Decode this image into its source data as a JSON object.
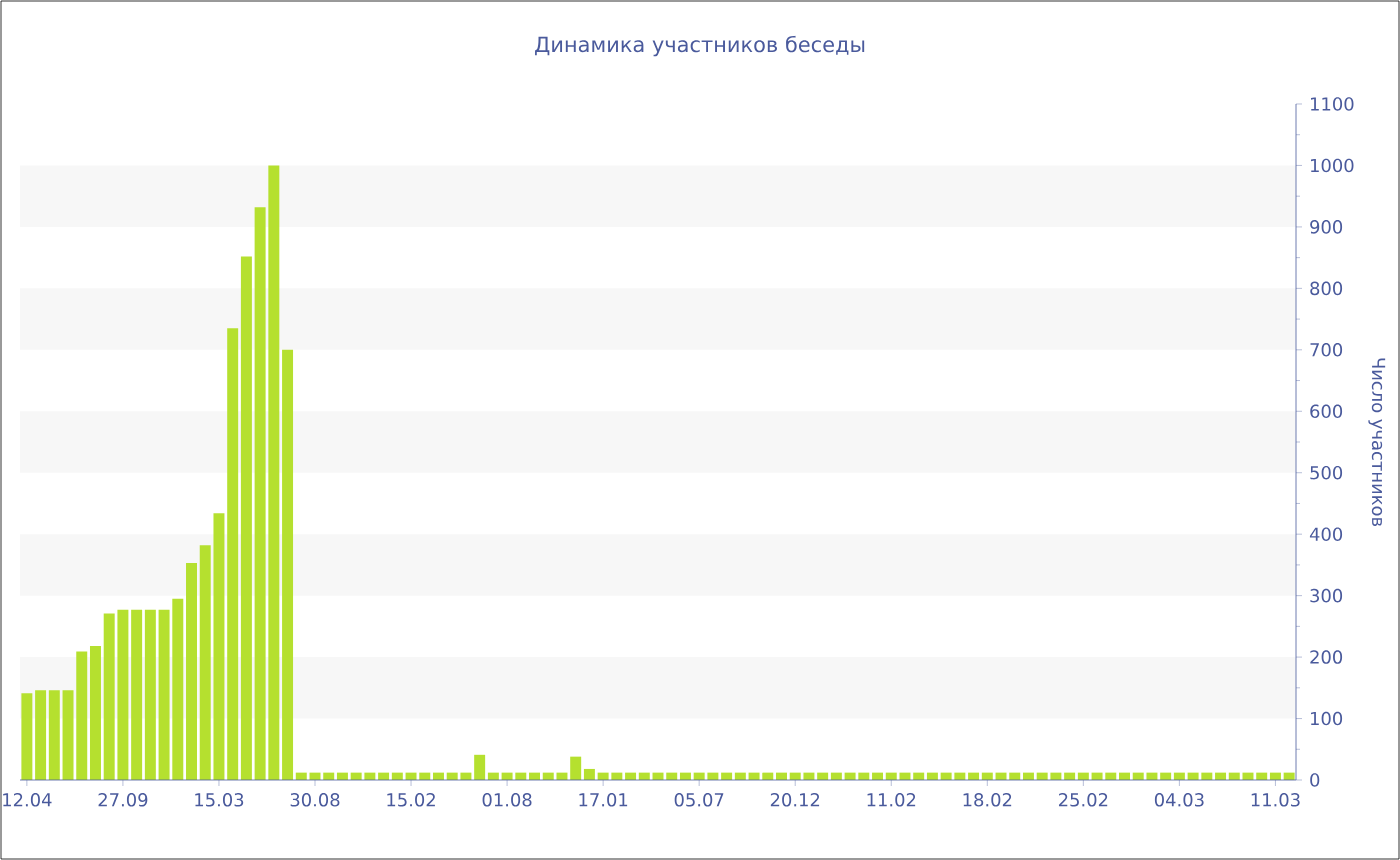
{
  "chart_data": {
    "type": "bar",
    "title": "Динамика участников беседы",
    "ylabel": "Число участников",
    "categories": [
      "12.04",
      null,
      null,
      null,
      null,
      null,
      null,
      "27.09",
      null,
      null,
      null,
      null,
      null,
      null,
      "15.03",
      null,
      null,
      null,
      null,
      null,
      null,
      "30.08",
      null,
      null,
      null,
      null,
      null,
      null,
      "15.02",
      null,
      null,
      null,
      null,
      null,
      null,
      "01.08",
      null,
      null,
      null,
      null,
      null,
      null,
      "17.01",
      null,
      null,
      null,
      null,
      null,
      null,
      "05.07",
      null,
      null,
      null,
      null,
      null,
      null,
      "20.12",
      null,
      null,
      null,
      null,
      null,
      null,
      "11.02",
      null,
      null,
      null,
      null,
      null,
      null,
      "18.02",
      null,
      null,
      null,
      null,
      null,
      null,
      "25.02",
      null,
      null,
      null,
      null,
      null,
      null,
      "04.03",
      null,
      null,
      null,
      null,
      null,
      null,
      "11.03",
      null
    ],
    "values": [
      141,
      146,
      146,
      146,
      209,
      218,
      271,
      277,
      277,
      277,
      277,
      295,
      353,
      382,
      434,
      735,
      852,
      932,
      1000,
      700,
      12,
      12,
      12,
      12,
      12,
      12,
      12,
      12,
      12,
      12,
      12,
      12,
      12,
      41,
      12,
      12,
      12,
      12,
      12,
      12,
      38,
      18,
      12,
      12,
      12,
      12,
      12,
      12,
      12,
      12,
      12,
      12,
      12,
      12,
      12,
      12,
      12,
      12,
      12,
      12,
      12,
      12,
      12,
      12,
      12,
      12,
      12,
      12,
      12,
      12,
      12,
      12,
      12,
      12,
      12,
      12,
      12,
      12,
      12,
      12,
      12,
      12,
      12,
      12,
      12,
      12,
      12,
      12,
      12,
      12,
      12,
      12,
      12
    ],
    "color": "#b5e02f",
    "ylim": [
      0,
      1100
    ],
    "yticks": [
      0,
      100,
      200,
      300,
      400,
      500,
      600,
      700,
      800,
      900,
      1000,
      1100
    ]
  }
}
